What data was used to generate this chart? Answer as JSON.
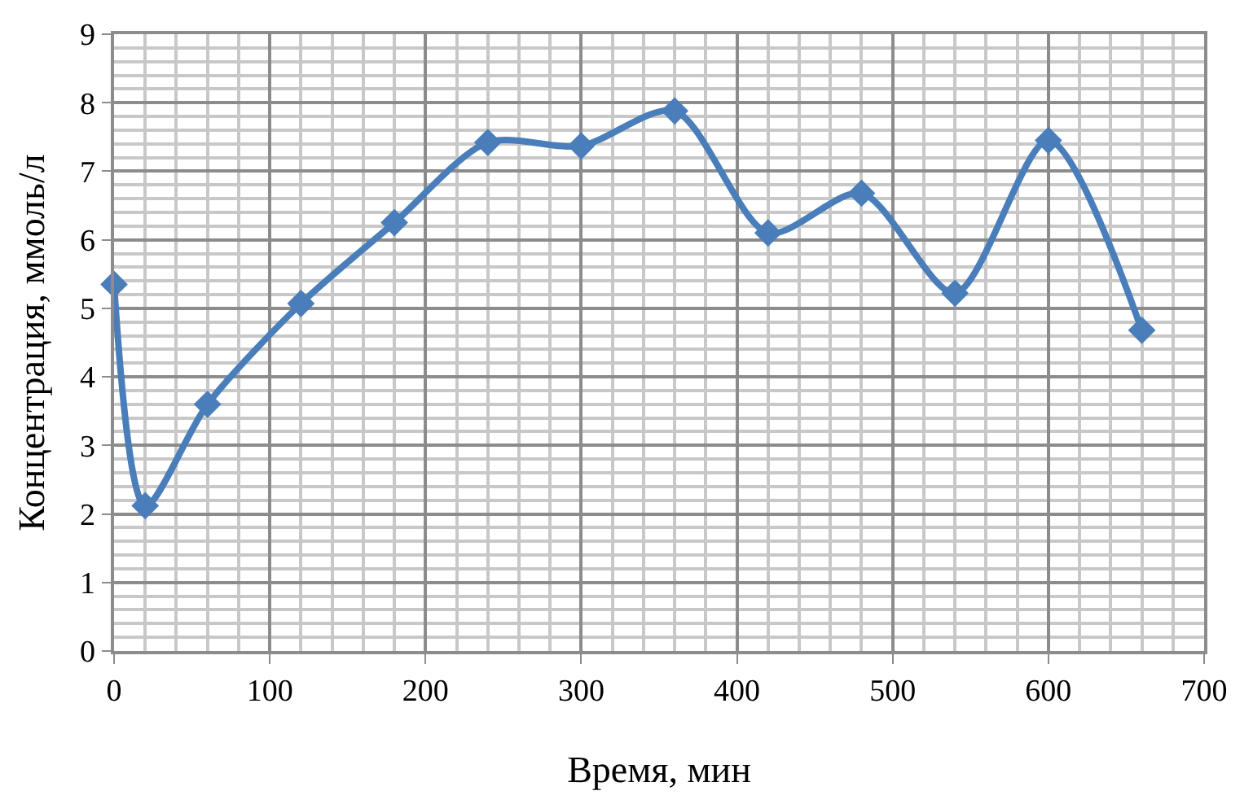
{
  "chart_data": {
    "type": "line",
    "xlabel": "Время, мин",
    "ylabel": "Концентрация, ммоль/л",
    "x": [
      0,
      20,
      60,
      120,
      180,
      240,
      300,
      360,
      420,
      480,
      540,
      600,
      660
    ],
    "series": [
      {
        "color": "#4a7ebb",
        "values": [
          5.35,
          2.12,
          3.6,
          5.07,
          6.25,
          7.42,
          7.37,
          7.88,
          6.1,
          6.68,
          5.22,
          7.45,
          4.68
        ]
      }
    ],
    "xlim": [
      0,
      700
    ],
    "xticks": [
      0,
      100,
      200,
      300,
      400,
      500,
      600,
      700
    ],
    "ylim": [
      0,
      9
    ],
    "yticks": [
      0,
      1,
      2,
      3,
      4,
      5,
      6,
      7,
      8,
      9
    ],
    "grid": true,
    "marker": "diamond",
    "line_style": "solid",
    "legend": false
  }
}
